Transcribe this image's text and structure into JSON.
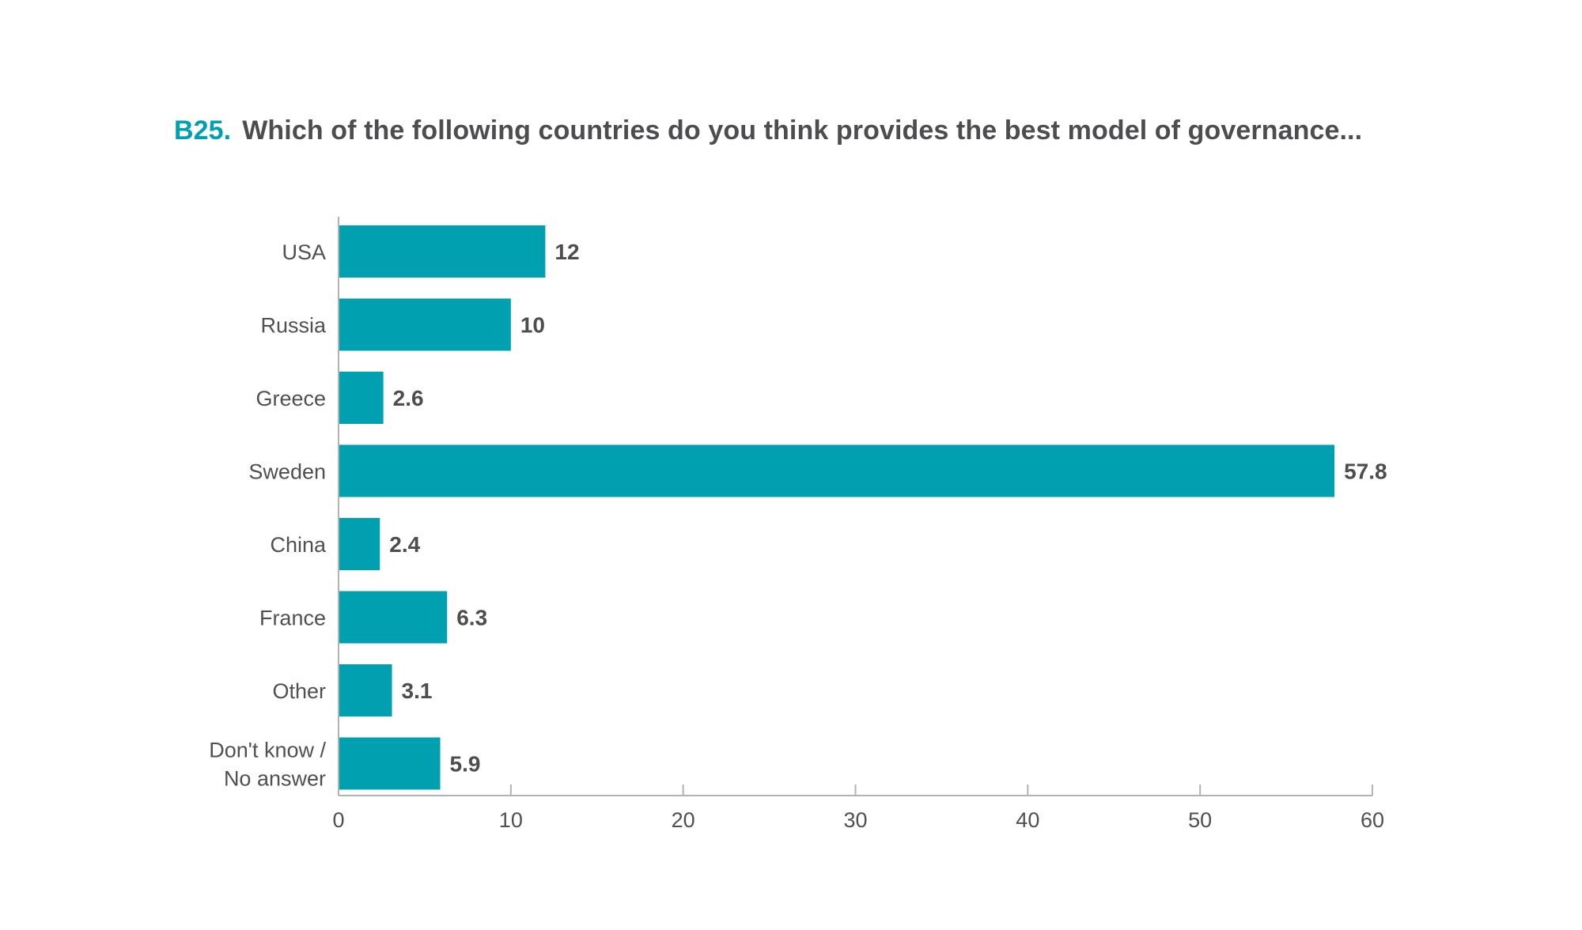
{
  "chart_data": {
    "type": "bar",
    "orientation": "horizontal",
    "title_code": "B25.",
    "title": "Which of the following countries do you think provides the best model of governance...",
    "categories": [
      "USA",
      "Russia",
      "Greece",
      "Sweden",
      "China",
      "France",
      "Other",
      "Don't know / No answer"
    ],
    "category_lines": [
      [
        "USA"
      ],
      [
        "Russia"
      ],
      [
        "Greece"
      ],
      [
        "Sweden"
      ],
      [
        "China"
      ],
      [
        "France"
      ],
      [
        "Other"
      ],
      [
        "Don't know /",
        "No answer"
      ]
    ],
    "values": [
      12,
      10,
      2.6,
      57.8,
      2.4,
      6.3,
      3.1,
      5.9
    ],
    "value_labels": [
      "12",
      "10",
      "2.6",
      "57.8",
      "2.4",
      "6.3",
      "3.1",
      "5.9"
    ],
    "xlim": [
      0,
      60
    ],
    "xticks": [
      0,
      10,
      20,
      30,
      40,
      50,
      60
    ],
    "grid": false,
    "colors": {
      "bar": "#00a0b0",
      "title_code": "#00a0b0",
      "text": "#4d4d4f",
      "axis": "#b3b3b3"
    }
  }
}
